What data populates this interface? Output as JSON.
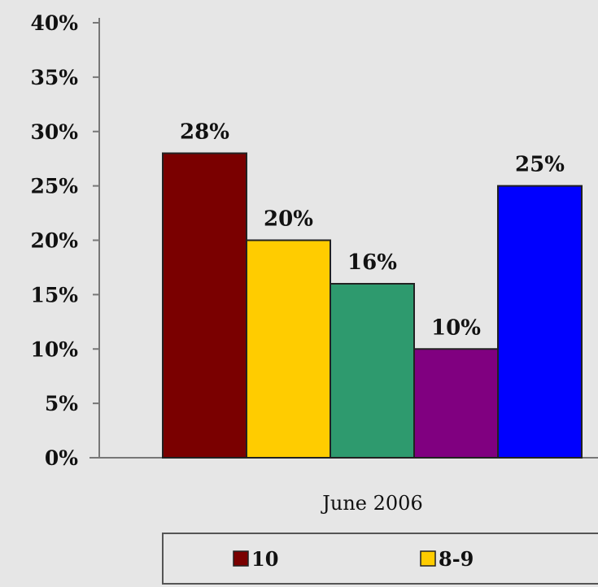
{
  "chart_data": {
    "type": "bar",
    "title": "",
    "xlabel": "June 2006",
    "ylabel": "",
    "categories": [
      "June 2006"
    ],
    "series": [
      {
        "name": "10",
        "values": [
          28
        ],
        "label": "28%",
        "color": "#7a0000"
      },
      {
        "name": "8-9",
        "values": [
          20
        ],
        "label": "20%",
        "color": "#ffcc00"
      },
      {
        "name": "",
        "values": [
          16
        ],
        "label": "16%",
        "color": "#2e9a6e"
      },
      {
        "name": "",
        "values": [
          10
        ],
        "label": "10%",
        "color": "#800080"
      },
      {
        "name": "",
        "values": [
          25
        ],
        "label": "25%",
        "color": "#0000ff"
      }
    ],
    "ylim": [
      0,
      40
    ],
    "yticks": [
      "0%",
      "5%",
      "10%",
      "15%",
      "20%",
      "25%",
      "30%",
      "35%",
      "40%"
    ],
    "grid": false,
    "legend_position": "bottom",
    "bar_outline_color": "#222222"
  }
}
